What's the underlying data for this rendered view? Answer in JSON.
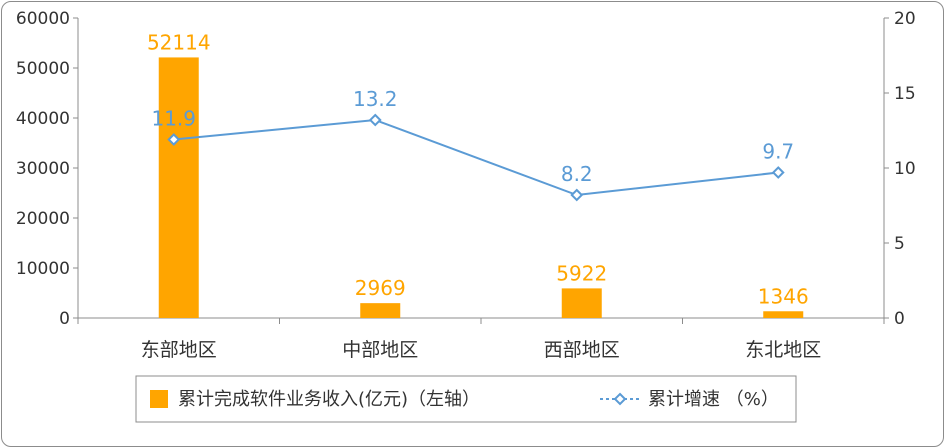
{
  "chart_data": {
    "type": "bar+line",
    "categories": [
      "东部地区",
      "中部地区",
      "西部地区",
      "东北地区"
    ],
    "series": [
      {
        "name": "累计完成软件业务收入(亿元)（左轴）",
        "type": "bar",
        "axis": "left",
        "values": [
          52114,
          2969,
          5922,
          1346
        ],
        "color": "#ffa500"
      },
      {
        "name": "累计增速 （%）",
        "type": "line",
        "axis": "right",
        "values": [
          11.9,
          13.2,
          8.2,
          9.7
        ],
        "color": "#5b9bd5"
      }
    ],
    "y_left": {
      "min": 0,
      "max": 60000,
      "ticks": [
        0,
        10000,
        20000,
        30000,
        40000,
        50000,
        60000
      ]
    },
    "y_right": {
      "min": 0,
      "max": 20,
      "ticks": [
        0,
        5,
        10,
        15,
        20
      ]
    },
    "grid": false,
    "legend_position": "bottom"
  }
}
